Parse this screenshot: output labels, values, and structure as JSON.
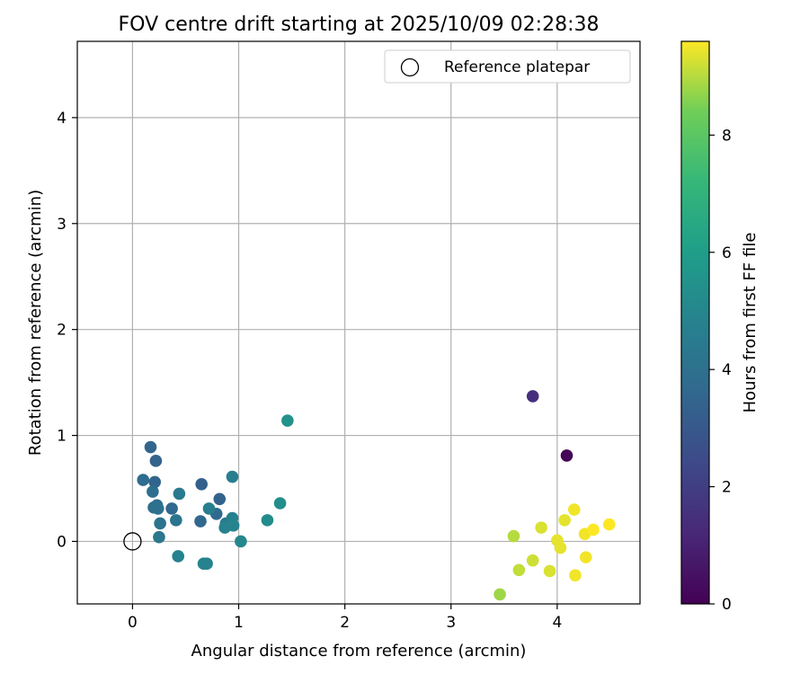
{
  "chart_data": {
    "type": "scatter",
    "title": "FOV centre drift starting at 2025/10/09 02:28:38",
    "xlabel": "Angular distance from reference (arcmin)",
    "ylabel": "Rotation from reference (arcmin)",
    "xlim": [
      -0.52,
      4.78
    ],
    "ylim": [
      -0.59,
      4.72
    ],
    "x_ticks": [
      0,
      1,
      2,
      3,
      4
    ],
    "y_ticks": [
      0,
      1,
      2,
      3,
      4
    ],
    "grid": true,
    "legend_position": "top-right",
    "colorbar": {
      "label": "Hours from first FF file",
      "colormap": "viridis",
      "range": [
        0,
        9.6
      ],
      "ticks": [
        0,
        2,
        4,
        6,
        8
      ]
    },
    "reference": {
      "name": "Reference platepar",
      "x": 0,
      "y": 0
    },
    "points": [
      {
        "x": 4.09,
        "y": 0.81,
        "h": 0.1
      },
      {
        "x": 3.77,
        "y": 1.37,
        "h": 1.5
      },
      {
        "x": 0.65,
        "y": 0.54,
        "h": 3.3
      },
      {
        "x": 0.82,
        "y": 0.4,
        "h": 3.4
      },
      {
        "x": 0.22,
        "y": 0.76,
        "h": 3.4
      },
      {
        "x": 0.17,
        "y": 0.89,
        "h": 3.5
      },
      {
        "x": 0.21,
        "y": 0.56,
        "h": 3.5
      },
      {
        "x": 0.37,
        "y": 0.31,
        "h": 3.6
      },
      {
        "x": 0.64,
        "y": 0.19,
        "h": 3.6
      },
      {
        "x": 0.79,
        "y": 0.26,
        "h": 3.7
      },
      {
        "x": 0.1,
        "y": 0.58,
        "h": 3.8
      },
      {
        "x": 0.23,
        "y": 0.34,
        "h": 3.8
      },
      {
        "x": 0.19,
        "y": 0.47,
        "h": 3.9
      },
      {
        "x": 0.2,
        "y": 0.32,
        "h": 3.9
      },
      {
        "x": 0.24,
        "y": 0.31,
        "h": 4.0
      },
      {
        "x": 0.26,
        "y": 0.17,
        "h": 4.1
      },
      {
        "x": 0.41,
        "y": 0.2,
        "h": 4.2
      },
      {
        "x": 0.25,
        "y": 0.04,
        "h": 4.3
      },
      {
        "x": 0.44,
        "y": 0.45,
        "h": 4.4
      },
      {
        "x": 0.88,
        "y": 0.17,
        "h": 4.4
      },
      {
        "x": 0.72,
        "y": 0.31,
        "h": 4.6
      },
      {
        "x": 0.94,
        "y": 0.61,
        "h": 4.6
      },
      {
        "x": 0.94,
        "y": 0.22,
        "h": 4.7
      },
      {
        "x": 0.87,
        "y": 0.13,
        "h": 4.8
      },
      {
        "x": 0.95,
        "y": 0.15,
        "h": 4.9
      },
      {
        "x": 0.43,
        "y": -0.14,
        "h": 4.8
      },
      {
        "x": 0.67,
        "y": -0.21,
        "h": 4.9
      },
      {
        "x": 0.7,
        "y": -0.21,
        "h": 4.8
      },
      {
        "x": 1.02,
        "y": 0.0,
        "h": 5.0
      },
      {
        "x": 1.27,
        "y": 0.2,
        "h": 5.2
      },
      {
        "x": 1.39,
        "y": 0.36,
        "h": 5.3
      },
      {
        "x": 1.46,
        "y": 1.14,
        "h": 5.5
      },
      {
        "x": 3.46,
        "y": -0.5,
        "h": 8.8
      },
      {
        "x": 3.59,
        "y": 0.05,
        "h": 9.0
      },
      {
        "x": 3.64,
        "y": -0.27,
        "h": 9.1
      },
      {
        "x": 3.77,
        "y": -0.18,
        "h": 9.2
      },
      {
        "x": 3.85,
        "y": 0.13,
        "h": 9.3
      },
      {
        "x": 3.93,
        "y": -0.28,
        "h": 9.3
      },
      {
        "x": 4.0,
        "y": 0.01,
        "h": 9.4
      },
      {
        "x": 4.03,
        "y": -0.06,
        "h": 9.4
      },
      {
        "x": 4.07,
        "y": 0.2,
        "h": 9.4
      },
      {
        "x": 4.16,
        "y": 0.3,
        "h": 9.5
      },
      {
        "x": 4.17,
        "y": -0.32,
        "h": 9.5
      },
      {
        "x": 4.26,
        "y": 0.07,
        "h": 9.5
      },
      {
        "x": 4.27,
        "y": -0.15,
        "h": 9.5
      },
      {
        "x": 4.34,
        "y": 0.11,
        "h": 9.6
      },
      {
        "x": 4.49,
        "y": 0.16,
        "h": 9.6
      }
    ]
  }
}
